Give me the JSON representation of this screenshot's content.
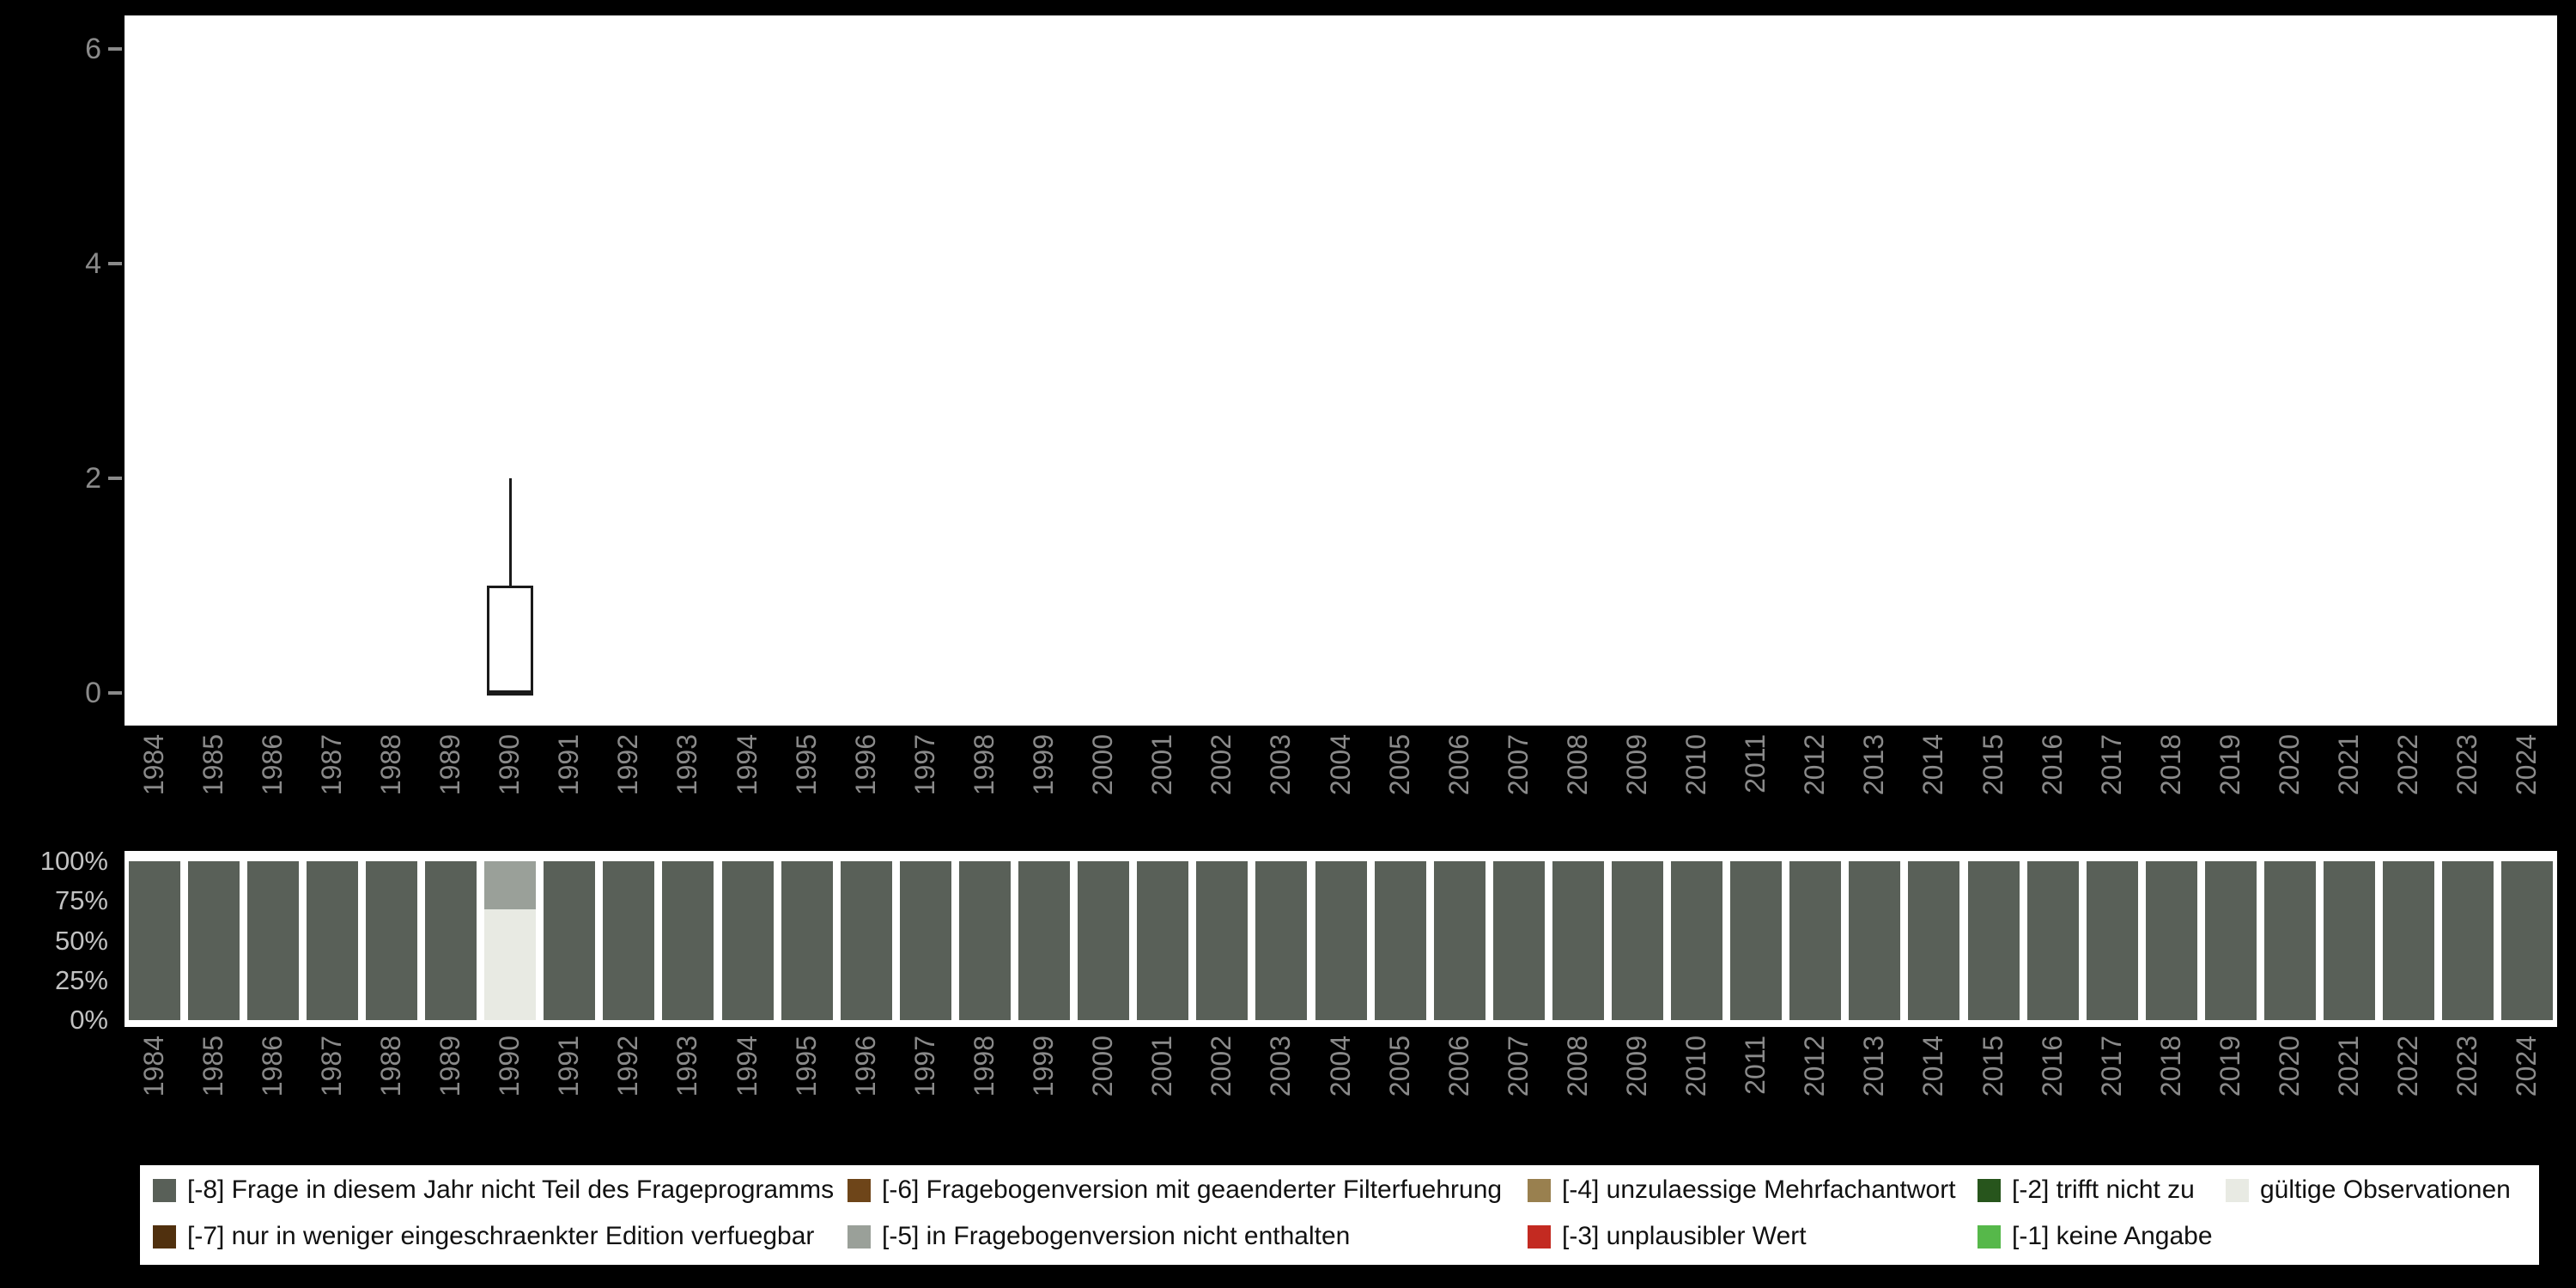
{
  "page": {
    "background": "#000000",
    "panel_background": "#ffffff"
  },
  "axis": {
    "text_color": "#8a8a8a",
    "pct_text_color": "#c2c2c2"
  },
  "chart_data": [
    {
      "type": "boxplot",
      "title": "",
      "xlabel": "",
      "ylabel": "",
      "grid": false,
      "ylim": [
        0,
        6.6
      ],
      "y_ticks": [
        0,
        2,
        4,
        6
      ],
      "x": [
        "1984",
        "1985",
        "1986",
        "1987",
        "1988",
        "1989",
        "1990",
        "1991",
        "1992",
        "1993",
        "1994",
        "1995",
        "1996",
        "1997",
        "1998",
        "1999",
        "2000",
        "2001",
        "2002",
        "2003",
        "2004",
        "2005",
        "2006",
        "2007",
        "2008",
        "2009",
        "2010",
        "2011",
        "2012",
        "2013",
        "2014",
        "2015",
        "2016",
        "2017",
        "2018",
        "2019",
        "2020",
        "2021",
        "2022",
        "2023",
        "2024"
      ],
      "boxes": [
        {
          "x": "1990",
          "whisker_low": 0,
          "q1": 0,
          "median": 0,
          "q3": 1,
          "whisker_high": 2
        }
      ]
    },
    {
      "type": "bar",
      "stacked": true,
      "unit": "percent",
      "title": "",
      "y_tick_labels": [
        "100%",
        "75%",
        "50%",
        "25%",
        "0%"
      ],
      "categories": [
        "1984",
        "1985",
        "1986",
        "1987",
        "1988",
        "1989",
        "1990",
        "1991",
        "1992",
        "1993",
        "1994",
        "1995",
        "1996",
        "1997",
        "1998",
        "1999",
        "2000",
        "2001",
        "2002",
        "2003",
        "2004",
        "2005",
        "2006",
        "2007",
        "2008",
        "2009",
        "2010",
        "2011",
        "2012",
        "2013",
        "2014",
        "2015",
        "2016",
        "2017",
        "2018",
        "2019",
        "2020",
        "2021",
        "2022",
        "2023",
        "2024"
      ],
      "default_segments": [
        {
          "code": "-8",
          "pct": 100
        }
      ],
      "overrides": {
        "1990": [
          {
            "code": "valid",
            "pct": 70
          },
          {
            "code": "-5",
            "pct": 30
          }
        ]
      }
    }
  ],
  "legend": {
    "items": [
      {
        "code": "-8",
        "label": "[-8] Frage in diesem Jahr nicht Teil des Frageprogramms",
        "color": "#596058",
        "col": 0,
        "row": 0
      },
      {
        "code": "-7",
        "label": "[-7] nur in weniger eingeschraenkter Edition verfuegbar",
        "color": "#50300e",
        "col": 0,
        "row": 1
      },
      {
        "code": "-6",
        "label": "[-6] Fragebogenversion mit geaenderter Filterfuehrung",
        "color": "#6e4519",
        "col": 1,
        "row": 0
      },
      {
        "code": "-5",
        "label": "[-5] in Fragebogenversion nicht enthalten",
        "color": "#9aa099",
        "col": 1,
        "row": 1
      },
      {
        "code": "-4",
        "label": "[-4] unzulaessige Mehrfachantwort",
        "color": "#99804f",
        "col": 2,
        "row": 0
      },
      {
        "code": "-3",
        "label": "[-3] unplausibler Wert",
        "color": "#c32a21",
        "col": 2,
        "row": 1
      },
      {
        "code": "-2",
        "label": "[-2] trifft nicht zu",
        "color": "#27551c",
        "col": 3,
        "row": 0
      },
      {
        "code": "-1",
        "label": "[-1] keine Angabe",
        "color": "#56b84a",
        "col": 3,
        "row": 1
      },
      {
        "code": "valid",
        "label": "gültige Observationen",
        "color": "#e8eae3",
        "col": 4,
        "row": 0
      }
    ]
  }
}
